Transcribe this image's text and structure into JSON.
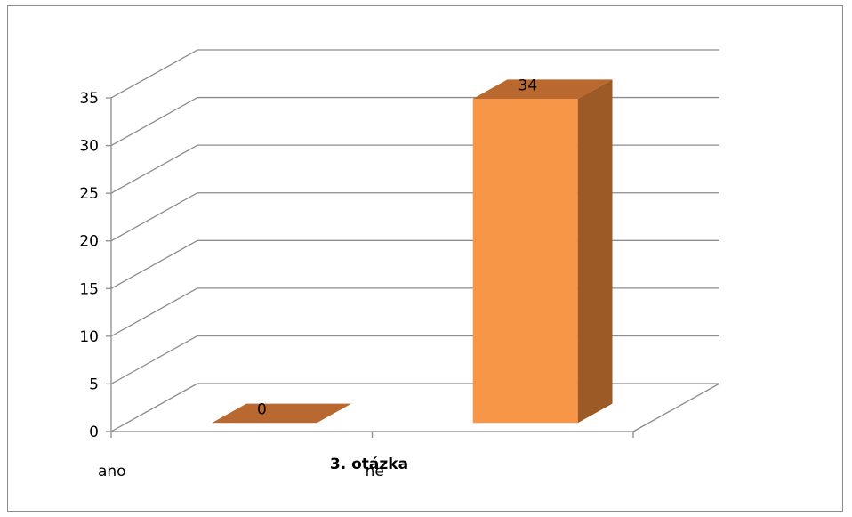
{
  "chart_data": {
    "type": "bar",
    "style": "3d-column",
    "categories": [
      "ano",
      "ne"
    ],
    "values": [
      0,
      34
    ],
    "data_labels": [
      "0",
      "34"
    ],
    "xlabel": "3. otázka",
    "ylabel": "",
    "ylim": [
      0,
      35
    ],
    "yticks": [
      "0",
      "5",
      "10",
      "15",
      "20",
      "25",
      "30",
      "35"
    ],
    "grid": true,
    "legend": "none",
    "colors": {
      "bar_front": "#f79646",
      "bar_side": "#9c5a27",
      "bar_top": "#b9692f",
      "grid": "#8c8c8c",
      "axis": "#8c8c8c"
    }
  }
}
